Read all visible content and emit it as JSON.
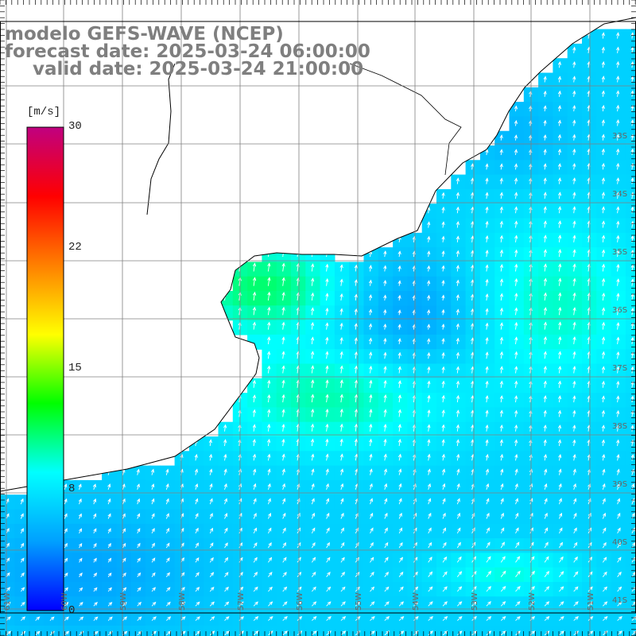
{
  "header": {
    "line1": "modelo GEFS-WAVE (NCEP)",
    "line2": "forecast date: 2025-03-24 06:00:00",
    "line3": "valid date: 2025-03-24 21:00:00"
  },
  "colorbar": {
    "unit": "[m/s]",
    "ticks": [
      "30",
      "22",
      "15",
      "8",
      "0"
    ],
    "colors": [
      "#0000ff",
      "#00a0ff",
      "#00ffff",
      "#00ff00",
      "#ffff00",
      "#ff8000",
      "#ff0000",
      "#c00080"
    ]
  },
  "grid": {
    "lat_labels": [
      "33S",
      "34S",
      "35S",
      "36S",
      "37S",
      "38S",
      "39S",
      "40S",
      "41S"
    ],
    "lon_labels": [
      "61W",
      "60W",
      "59W",
      "58W",
      "57W",
      "56W",
      "55W",
      "54W",
      "53W",
      "52W",
      "51W"
    ]
  },
  "colors": {
    "land": "#ffffff",
    "coast": "#000000",
    "grid": "#808080",
    "arrow": "#ffffff"
  }
}
